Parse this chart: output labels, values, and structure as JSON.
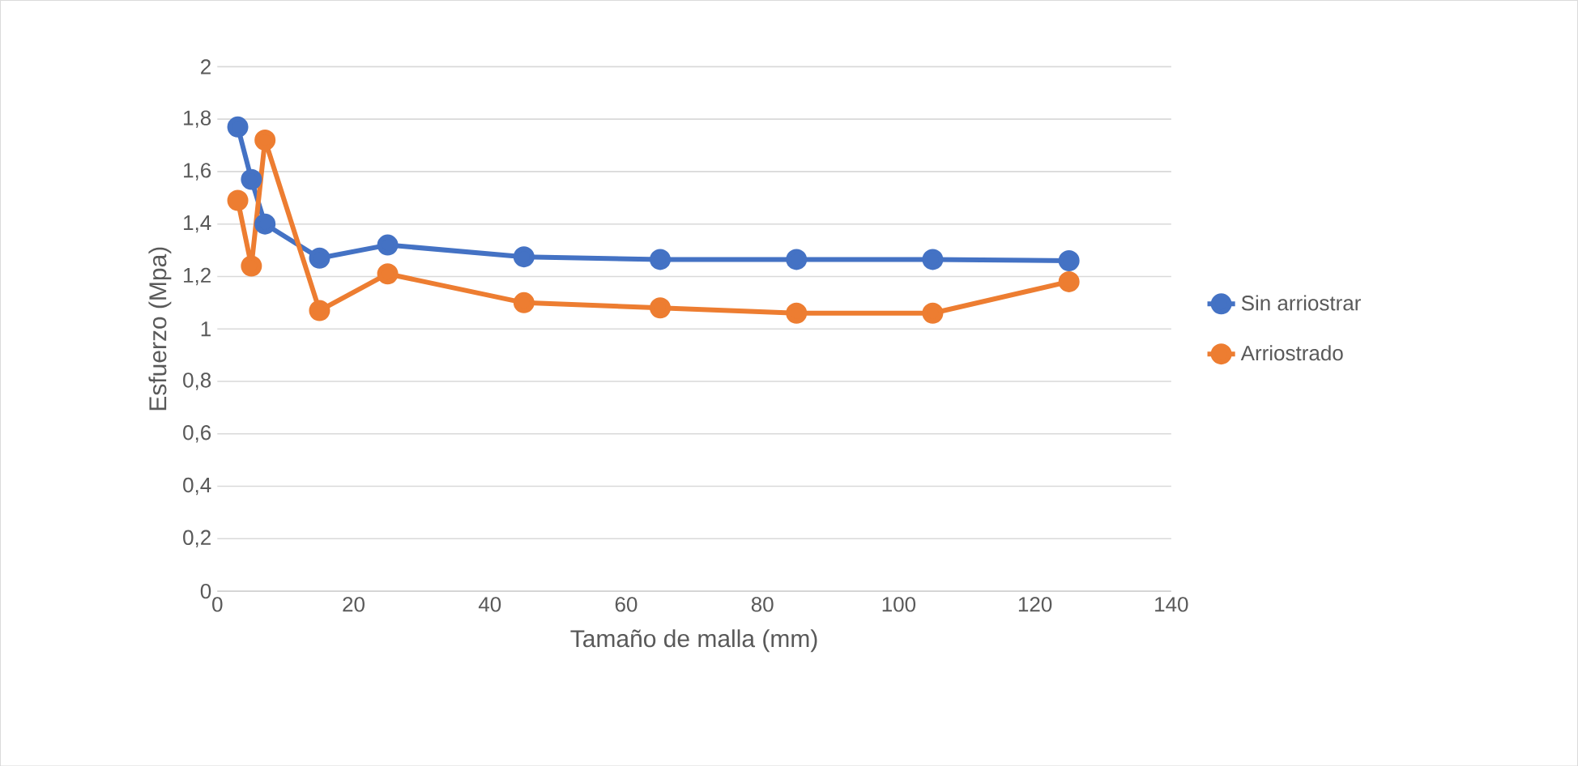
{
  "chart_data": {
    "type": "line",
    "xlabel": "Tamaño de malla (mm)",
    "ylabel": "Esfuerzo (Mpa)",
    "x": [
      3,
      5,
      7,
      15,
      25,
      45,
      65,
      85,
      105,
      125
    ],
    "series": [
      {
        "name": "Sin arriostrar",
        "color": "#4472c4",
        "values": [
          1.77,
          1.57,
          1.4,
          1.27,
          1.32,
          1.275,
          1.265,
          1.265,
          1.265,
          1.26
        ]
      },
      {
        "name": "Arriostrado",
        "color": "#ed7d31",
        "values": [
          1.49,
          1.24,
          1.72,
          1.07,
          1.21,
          1.1,
          1.08,
          1.06,
          1.06,
          1.18
        ]
      }
    ],
    "xlim": [
      0,
      140
    ],
    "xticks": [
      0,
      20,
      40,
      60,
      80,
      100,
      120,
      140
    ],
    "ylim": [
      0,
      2
    ],
    "yticks": [
      0,
      {
        "value": 0.2,
        "label": "0,2"
      },
      {
        "value": 0.4,
        "label": "0,4"
      },
      {
        "value": 0.6,
        "label": "0,6"
      },
      {
        "value": 0.8,
        "label": "0,8"
      },
      1,
      {
        "value": 1.2,
        "label": "1,2"
      },
      {
        "value": 1.4,
        "label": "1,4"
      },
      {
        "value": 1.6,
        "label": "1,6"
      },
      {
        "value": 1.8,
        "label": "1,8"
      },
      2
    ],
    "grid": "y",
    "legend": "right",
    "marker": "circle",
    "line_style": "solid"
  }
}
